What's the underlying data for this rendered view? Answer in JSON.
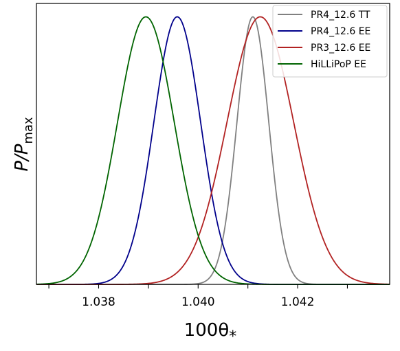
{
  "chart_data": {
    "type": "line",
    "title": "",
    "xlabel": "100θ",
    "xlabel_subscript": "*",
    "ylabel": "P/P",
    "ylabel_subscript": "max",
    "xlim": [
      1.03675,
      1.04385
    ],
    "ylim": [
      0,
      1.05
    ],
    "x_ticks": [
      1.037,
      1.038,
      1.039,
      1.04,
      1.041,
      1.042,
      1.043
    ],
    "x_tick_labels": [
      "",
      "1.038",
      "",
      "1.040",
      "",
      "1.042",
      ""
    ],
    "y_ticks_shown": false,
    "grid": false,
    "legend_position": "top-right",
    "series": [
      {
        "name": "PR4_12.6 TT",
        "color": "#808080",
        "peak_x": 1.0411,
        "sigma": 0.00032,
        "peak_y": 1.0
      },
      {
        "name": "PR4_12.6 EE",
        "color": "#00008b",
        "peak_x": 1.03958,
        "sigma": 0.00047,
        "peak_y": 1.0
      },
      {
        "name": "PR3_12.6 EE",
        "color": "#b22222",
        "peak_x": 1.04125,
        "sigma": 0.00067,
        "peak_y": 1.0
      },
      {
        "name": "HiLLiPoP  EE",
        "color": "#006400",
        "peak_x": 1.03895,
        "sigma": 0.00057,
        "peak_y": 1.0
      }
    ]
  }
}
